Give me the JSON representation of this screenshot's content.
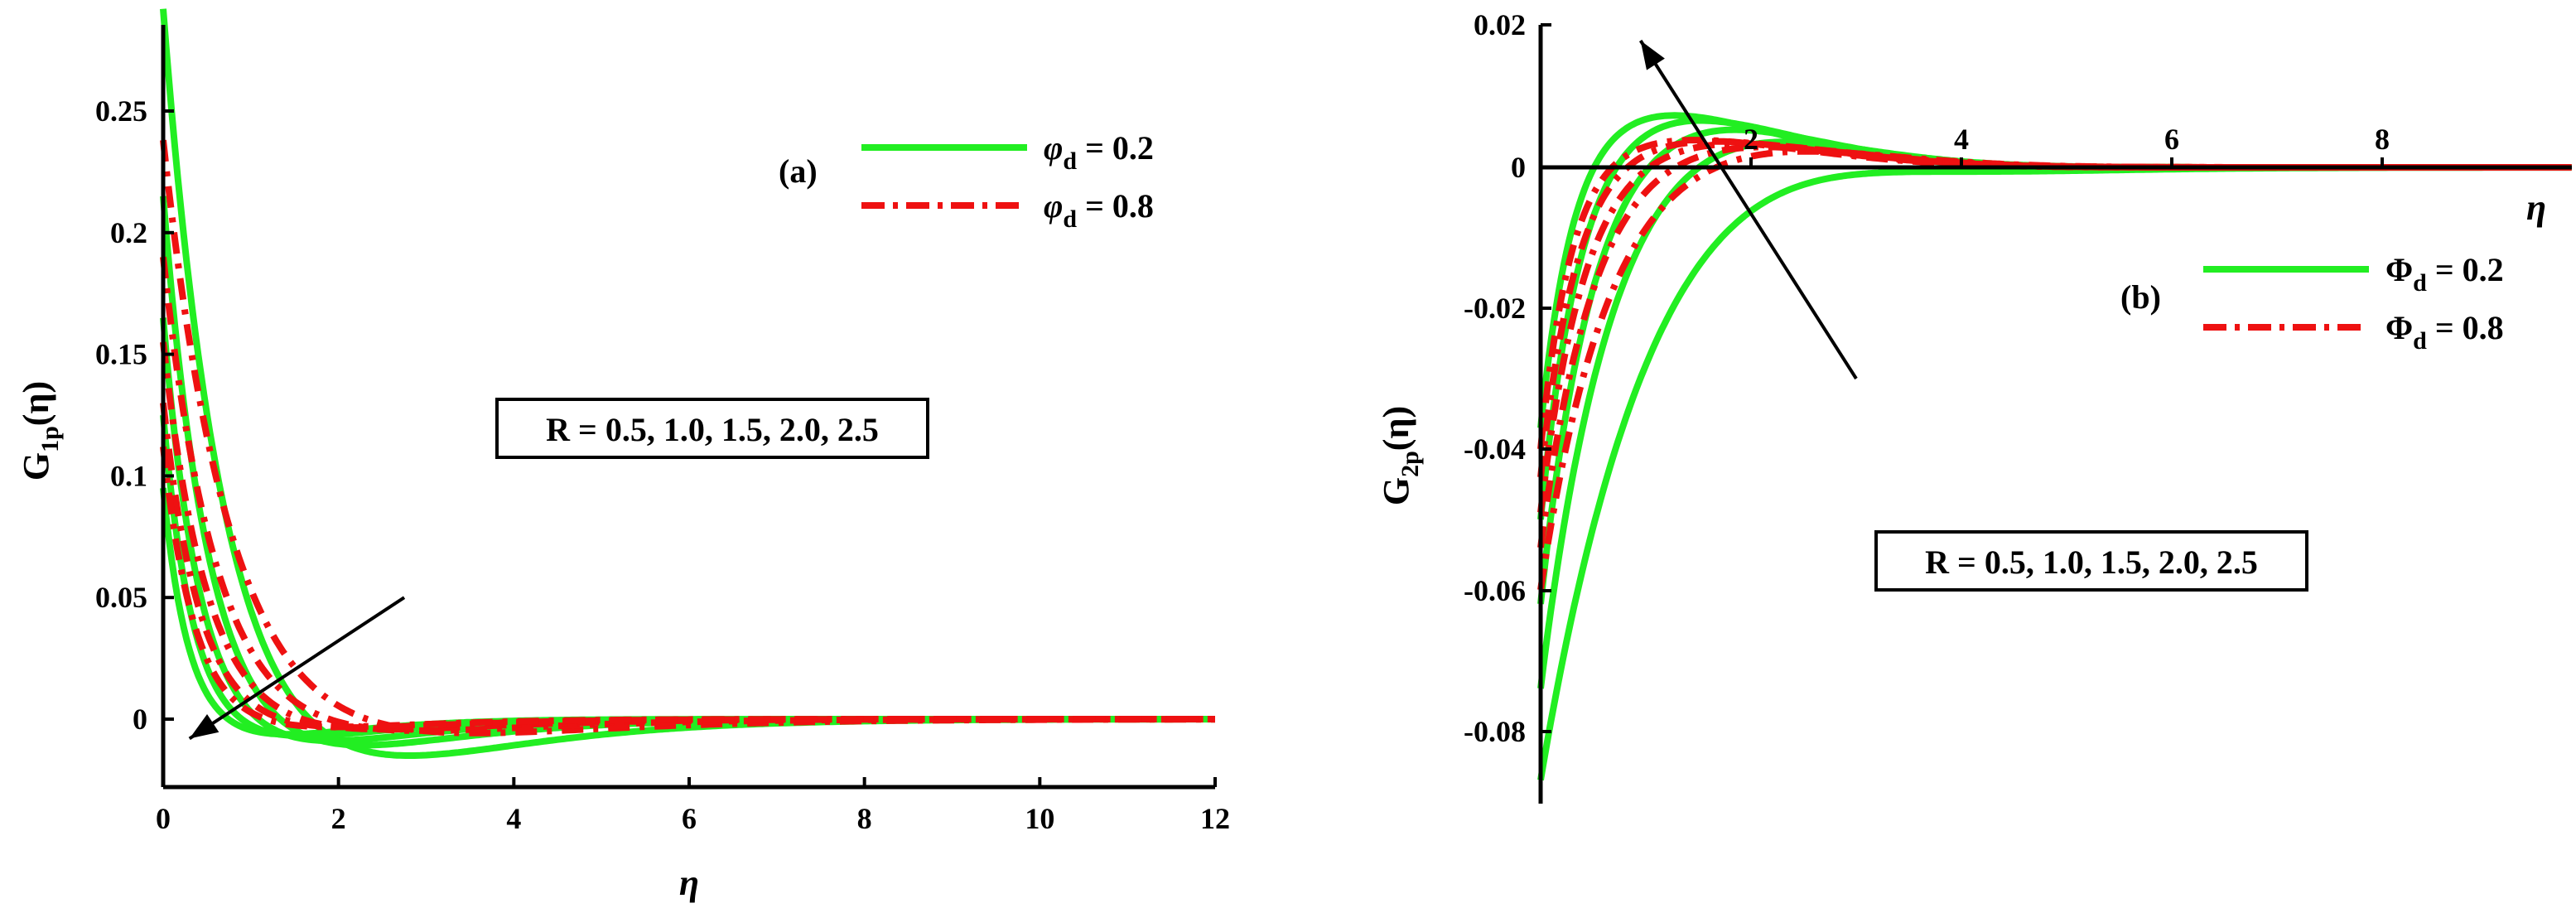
{
  "chart_data": [
    {
      "panel_label": "(a)",
      "type": "line",
      "xlabel": "η",
      "ylabel_main": "G",
      "ylabel_sub": "1p",
      "ylabel_tail": "(η)",
      "xlim": [
        0,
        12
      ],
      "ylim": [
        -0.02,
        0.3
      ],
      "xticks": [
        "0",
        "2",
        "4",
        "6",
        "8",
        "10",
        "12"
      ],
      "yticks": [
        "0",
        "0.05",
        "0.1",
        "0.15",
        "0.2",
        "0.25"
      ],
      "legend": [
        {
          "symbol": "φ",
          "sub": "d",
          "text": " = 0.2",
          "color": "#22ee22",
          "style": "solid"
        },
        {
          "symbol": "φ",
          "sub": "d",
          "text": " = 0.8",
          "color": "#ee1111",
          "style": "dashdot"
        }
      ],
      "annotation": "R = 0.5, 1.0, 1.5, 2.0, 2.5",
      "arrow": {
        "from": [
          2.75,
          0.05
        ],
        "to": [
          0.3,
          -0.008
        ]
      },
      "colors": {
        "phi_0.2": "#22ee22",
        "phi_0.8": "#ee1111"
      },
      "series": [
        {
          "group": "phi_d = 0.2",
          "R": 0.5,
          "A": 0.292,
          "k": 1.6,
          "m": -0.012,
          "c": 2.0
        },
        {
          "group": "phi_d = 0.2",
          "R": 1.0,
          "A": 0.215,
          "k": 2.1,
          "m": -0.011,
          "c": 1.7
        },
        {
          "group": "phi_d = 0.2",
          "R": 1.5,
          "A": 0.165,
          "k": 2.6,
          "m": -0.011,
          "c": 1.5
        },
        {
          "group": "phi_d = 0.2",
          "R": 2.0,
          "A": 0.125,
          "k": 3.2,
          "m": -0.011,
          "c": 1.3
        },
        {
          "group": "phi_d = 0.2",
          "R": 2.5,
          "A": 0.095,
          "k": 3.8,
          "m": -0.011,
          "c": 1.2
        },
        {
          "group": "phi_d = 0.8",
          "R": 0.5,
          "A": 0.238,
          "k": 1.4,
          "m": -0.004,
          "c": 2.3
        },
        {
          "group": "phi_d = 0.8",
          "R": 1.0,
          "A": 0.19,
          "k": 1.75,
          "m": -0.004,
          "c": 2.0
        },
        {
          "group": "phi_d = 0.8",
          "R": 1.5,
          "A": 0.155,
          "k": 2.1,
          "m": -0.004,
          "c": 1.8
        },
        {
          "group": "phi_d = 0.8",
          "R": 2.0,
          "A": 0.13,
          "k": 2.5,
          "m": -0.004,
          "c": 1.6
        },
        {
          "group": "phi_d = 0.8",
          "R": 2.5,
          "A": 0.112,
          "k": 2.9,
          "m": -0.004,
          "c": 1.5
        }
      ]
    },
    {
      "panel_label": "(b)",
      "type": "line",
      "xlabel": "η",
      "ylabel_main": "G",
      "ylabel_sub": "2p",
      "ylabel_tail": "(η)",
      "xlim": [
        0,
        10
      ],
      "ylim": [
        -0.09,
        0.02
      ],
      "xticks": [
        "2",
        "4",
        "6",
        "8"
      ],
      "yticks": [
        "0.02",
        "0",
        "-0.02",
        "-0.04",
        "-0.06",
        "-0.08"
      ],
      "legend": [
        {
          "symbol": "Φ",
          "sub": "d",
          "text": " = 0.2",
          "color": "#22ee22",
          "style": "solid"
        },
        {
          "symbol": "Φ",
          "sub": "d",
          "text": " = 0.8",
          "color": "#ee1111",
          "style": "dashdot"
        }
      ],
      "annotation": "R = 0.5, 1.0, 1.5, 2.0, 2.5",
      "arrow": {
        "from": [
          3.0,
          -0.03
        ],
        "to": [
          0.95,
          0.018
        ]
      },
      "colors": {
        "phi_0.2": "#22ee22",
        "phi_0.8": "#ee1111"
      },
      "series": [
        {
          "group": "Phi_d = 0.2",
          "R": 0.5,
          "A": -0.087,
          "k": 0.95,
          "P": 0.004,
          "d": 1.3
        },
        {
          "group": "Phi_d = 0.2",
          "R": 1.0,
          "A": -0.074,
          "k": 1.5,
          "P": 0.004,
          "d": 1.1
        },
        {
          "group": "Phi_d = 0.2",
          "R": 1.5,
          "A": -0.062,
          "k": 2.0,
          "P": 0.004,
          "d": 0.9
        },
        {
          "group": "Phi_d = 0.2",
          "R": 2.0,
          "A": -0.05,
          "k": 2.6,
          "P": 0.004,
          "d": 0.8
        },
        {
          "group": "Phi_d = 0.2",
          "R": 2.5,
          "A": -0.037,
          "k": 3.2,
          "P": 0.004,
          "d": 0.7
        },
        {
          "group": "Phi_d = 0.8",
          "R": 0.5,
          "A": -0.06,
          "k": 1.6,
          "P": 0.002,
          "d": 1.5
        },
        {
          "group": "Phi_d = 0.8",
          "R": 1.0,
          "A": -0.054,
          "k": 2.0,
          "P": 0.002,
          "d": 1.3
        },
        {
          "group": "Phi_d = 0.8",
          "R": 1.5,
          "A": -0.049,
          "k": 2.4,
          "P": 0.002,
          "d": 1.2
        },
        {
          "group": "Phi_d = 0.8",
          "R": 2.0,
          "A": -0.044,
          "k": 2.9,
          "P": 0.002,
          "d": 1.1
        },
        {
          "group": "Phi_d = 0.8",
          "R": 2.5,
          "A": -0.04,
          "k": 3.4,
          "P": 0.002,
          "d": 1.0
        }
      ]
    }
  ]
}
